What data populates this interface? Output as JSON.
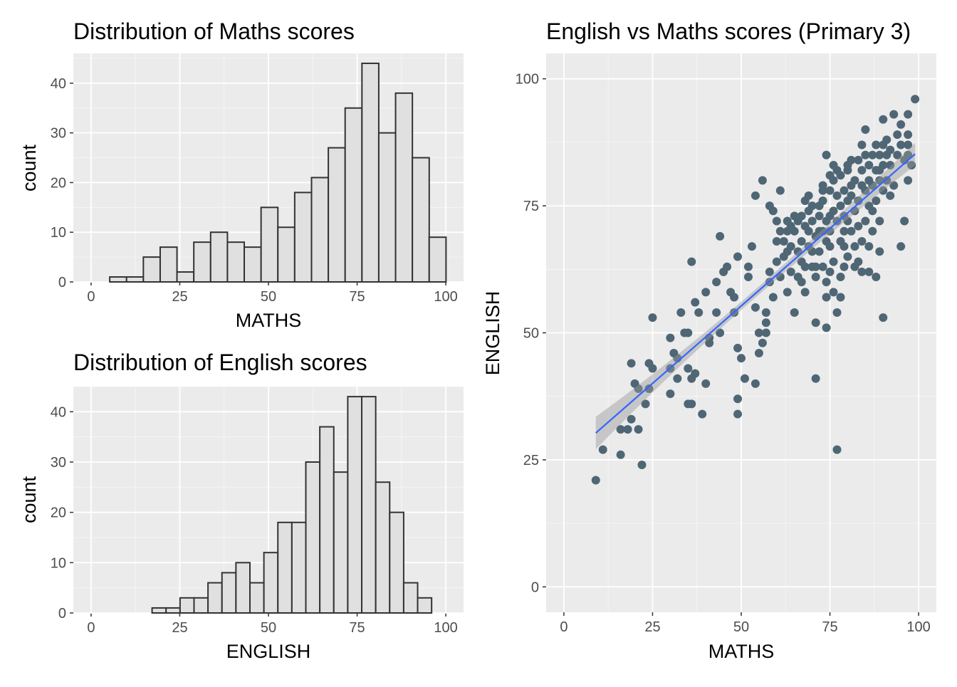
{
  "chart_data": [
    {
      "type": "bar",
      "subtype": "histogram",
      "title": "Distribution of Maths scores",
      "xlabel": "MATHS",
      "ylabel": "count",
      "xlim": [
        -5,
        105
      ],
      "ylim": [
        0,
        46
      ],
      "xticks": [
        "0",
        "25",
        "50",
        "75",
        "100"
      ],
      "yticks": [
        "0",
        "10",
        "20",
        "30",
        "40"
      ],
      "bin_start": 5.26,
      "bin_width": 4.74,
      "values": [
        1,
        1,
        5,
        7,
        2,
        8,
        10,
        8,
        7,
        15,
        11,
        18,
        21,
        27,
        35,
        44,
        30,
        38,
        25,
        9
      ],
      "grid": true
    },
    {
      "type": "bar",
      "subtype": "histogram",
      "title": "Distribution of English scores",
      "xlabel": "ENGLISH",
      "ylabel": "count",
      "xlim": [
        -5,
        105
      ],
      "ylim": [
        0,
        45
      ],
      "xticks": [
        "0",
        "25",
        "50",
        "75",
        "100"
      ],
      "yticks": [
        "0",
        "10",
        "20",
        "30",
        "40"
      ],
      "bin_start": 17.2,
      "bin_width": 3.94,
      "values": [
        1,
        1,
        3,
        3,
        6,
        8,
        10,
        6,
        12,
        18,
        18,
        30,
        37,
        28,
        43,
        43,
        26,
        20,
        6,
        3
      ],
      "grid": true
    },
    {
      "type": "scatter",
      "title": "English vs Maths scores (Primary 3)",
      "xlabel": "MATHS",
      "ylabel": "ENGLISH",
      "xlim": [
        -5,
        105
      ],
      "ylim": [
        -5,
        105
      ],
      "xticks": [
        "0",
        "25",
        "50",
        "75",
        "100"
      ],
      "yticks": [
        "0",
        "25",
        "50",
        "75",
        "100"
      ],
      "fit": {
        "method": "lm",
        "intercept": 24.8,
        "slope": 0.61,
        "x_range": [
          9,
          99
        ],
        "se_band": [
          3.2,
          0.8,
          2.2
        ]
      },
      "points": [
        [
          9,
          21
        ],
        [
          11,
          27
        ],
        [
          16,
          26
        ],
        [
          16,
          31
        ],
        [
          18,
          31
        ],
        [
          21,
          31
        ],
        [
          19,
          33
        ],
        [
          22,
          24
        ],
        [
          19,
          44
        ],
        [
          20,
          40
        ],
        [
          21,
          39
        ],
        [
          23,
          36
        ],
        [
          24,
          44
        ],
        [
          25,
          43
        ],
        [
          24,
          39
        ],
        [
          25,
          53
        ],
        [
          30,
          49
        ],
        [
          30,
          43
        ],
        [
          30,
          38
        ],
        [
          31,
          46
        ],
        [
          32,
          45
        ],
        [
          32,
          41
        ],
        [
          33,
          54
        ],
        [
          34,
          50
        ],
        [
          35,
          50
        ],
        [
          35,
          43
        ],
        [
          36,
          41
        ],
        [
          35,
          36
        ],
        [
          36,
          36
        ],
        [
          37,
          42
        ],
        [
          36,
          64
        ],
        [
          37,
          56
        ],
        [
          39,
          34
        ],
        [
          40,
          40
        ],
        [
          38,
          54
        ],
        [
          40,
          58
        ],
        [
          41,
          49
        ],
        [
          41,
          48
        ],
        [
          43,
          54
        ],
        [
          43,
          60
        ],
        [
          44,
          69
        ],
        [
          44,
          50
        ],
        [
          45,
          62
        ],
        [
          46,
          63
        ],
        [
          47,
          58
        ],
        [
          48,
          57
        ],
        [
          48,
          54
        ],
        [
          49,
          47
        ],
        [
          49,
          37
        ],
        [
          49,
          34
        ],
        [
          49,
          65
        ],
        [
          50,
          45
        ],
        [
          51,
          41
        ],
        [
          52,
          63
        ],
        [
          52,
          61
        ],
        [
          53,
          67
        ],
        [
          54,
          40
        ],
        [
          54,
          77
        ],
        [
          54,
          55
        ],
        [
          56,
          80
        ],
        [
          55,
          50
        ],
        [
          56,
          48
        ],
        [
          55,
          46
        ],
        [
          57,
          50
        ],
        [
          57,
          52
        ],
        [
          57,
          54
        ],
        [
          58,
          62
        ],
        [
          58,
          75
        ],
        [
          59,
          74
        ],
        [
          60,
          72
        ],
        [
          60,
          68
        ],
        [
          61,
          78
        ],
        [
          61,
          61
        ],
        [
          62,
          65
        ],
        [
          63,
          70
        ],
        [
          63,
          58
        ],
        [
          64,
          67
        ],
        [
          65,
          54
        ],
        [
          65,
          73
        ],
        [
          66,
          61
        ],
        [
          67,
          64
        ],
        [
          68,
          76
        ],
        [
          68,
          58
        ],
        [
          69,
          77
        ],
        [
          69,
          70
        ],
        [
          70,
          63
        ],
        [
          71,
          41
        ],
        [
          71,
          52
        ],
        [
          71,
          61
        ],
        [
          72,
          70
        ],
        [
          72,
          73
        ],
        [
          73,
          79
        ],
        [
          74,
          85
        ],
        [
          74,
          51
        ],
        [
          74,
          57
        ],
        [
          75,
          67
        ],
        [
          75,
          73
        ],
        [
          76,
          83
        ],
        [
          76,
          64
        ],
        [
          77,
          27
        ],
        [
          77,
          54
        ],
        [
          78,
          61
        ],
        [
          79,
          73
        ],
        [
          79,
          67
        ],
        [
          80,
          83
        ],
        [
          81,
          79
        ],
        [
          82,
          74
        ],
        [
          83,
          64
        ],
        [
          84,
          87
        ],
        [
          84,
          62
        ],
        [
          85,
          90
        ],
        [
          86,
          67
        ],
        [
          87,
          74
        ],
        [
          88,
          61
        ],
        [
          89,
          82
        ],
        [
          90,
          53
        ],
        [
          90,
          92
        ],
        [
          91,
          85
        ],
        [
          92,
          77
        ],
        [
          93,
          93
        ],
        [
          94,
          89
        ],
        [
          95,
          67
        ],
        [
          95,
          91
        ],
        [
          96,
          72
        ],
        [
          97,
          93
        ],
        [
          97,
          89
        ],
        [
          97,
          80
        ],
        [
          98,
          83
        ],
        [
          99,
          96
        ],
        [
          65,
          70
        ],
        [
          66,
          72
        ],
        [
          67,
          68
        ],
        [
          68,
          71
        ],
        [
          69,
          74
        ],
        [
          70,
          72
        ],
        [
          70,
          66
        ],
        [
          71,
          69
        ],
        [
          72,
          75
        ],
        [
          72,
          66
        ],
        [
          73,
          70
        ],
        [
          73,
          76
        ],
        [
          74,
          72
        ],
        [
          74,
          68
        ],
        [
          75,
          78
        ],
        [
          75,
          70
        ],
        [
          76,
          74
        ],
        [
          76,
          80
        ],
        [
          77,
          72
        ],
        [
          77,
          77
        ],
        [
          78,
          81
        ],
        [
          78,
          75
        ],
        [
          78,
          68
        ],
        [
          79,
          78
        ],
        [
          79,
          70
        ],
        [
          80,
          76
        ],
        [
          80,
          82
        ],
        [
          80,
          72
        ],
        [
          81,
          70
        ],
        [
          81,
          77
        ],
        [
          82,
          80
        ],
        [
          82,
          67
        ],
        [
          83,
          76
        ],
        [
          83,
          84
        ],
        [
          83,
          71
        ],
        [
          84,
          79
        ],
        [
          84,
          82
        ],
        [
          85,
          85
        ],
        [
          85,
          78
        ],
        [
          85,
          72
        ],
        [
          86,
          80
        ],
        [
          86,
          83
        ],
        [
          86,
          75
        ],
        [
          87,
          85
        ],
        [
          87,
          79
        ],
        [
          87,
          70
        ],
        [
          88,
          82
        ],
        [
          88,
          87
        ],
        [
          88,
          76
        ],
        [
          89,
          85
        ],
        [
          89,
          80
        ],
        [
          89,
          72
        ],
        [
          90,
          87
        ],
        [
          90,
          83
        ],
        [
          90,
          78
        ],
        [
          91,
          88
        ],
        [
          91,
          80
        ],
        [
          92,
          86
        ],
        [
          92,
          83
        ],
        [
          93,
          79
        ],
        [
          94,
          85
        ],
        [
          95,
          87
        ],
        [
          96,
          84
        ],
        [
          97,
          85
        ],
        [
          97,
          87
        ],
        [
          62,
          68
        ],
        [
          63,
          66
        ],
        [
          64,
          71
        ],
        [
          64,
          62
        ],
        [
          66,
          66
        ],
        [
          67,
          73
        ],
        [
          68,
          63
        ],
        [
          69,
          67
        ],
        [
          71,
          63
        ],
        [
          73,
          63
        ],
        [
          75,
          62
        ],
        [
          76,
          58
        ],
        [
          78,
          57
        ],
        [
          80,
          65
        ],
        [
          82,
          63
        ],
        [
          60,
          64
        ],
        [
          58,
          60
        ],
        [
          61,
          70
        ],
        [
          59,
          57
        ],
        [
          63,
          72
        ],
        [
          67,
          60
        ],
        [
          70,
          75
        ],
        [
          74,
          60
        ],
        [
          79,
          63
        ],
        [
          84,
          68
        ],
        [
          86,
          62
        ],
        [
          89,
          66
        ],
        [
          77,
          82
        ],
        [
          81,
          84
        ],
        [
          75,
          81
        ],
        [
          73,
          78
        ]
      ],
      "grid": true
    }
  ],
  "colors": {
    "panel_bg": "#EBEBEB",
    "grid": "#FFFFFF",
    "bar_fill": "#E0E0E0",
    "bar_stroke": "#333333",
    "point": "#4F6675",
    "fit_line": "#3366FF",
    "ribbon": "#999999"
  }
}
